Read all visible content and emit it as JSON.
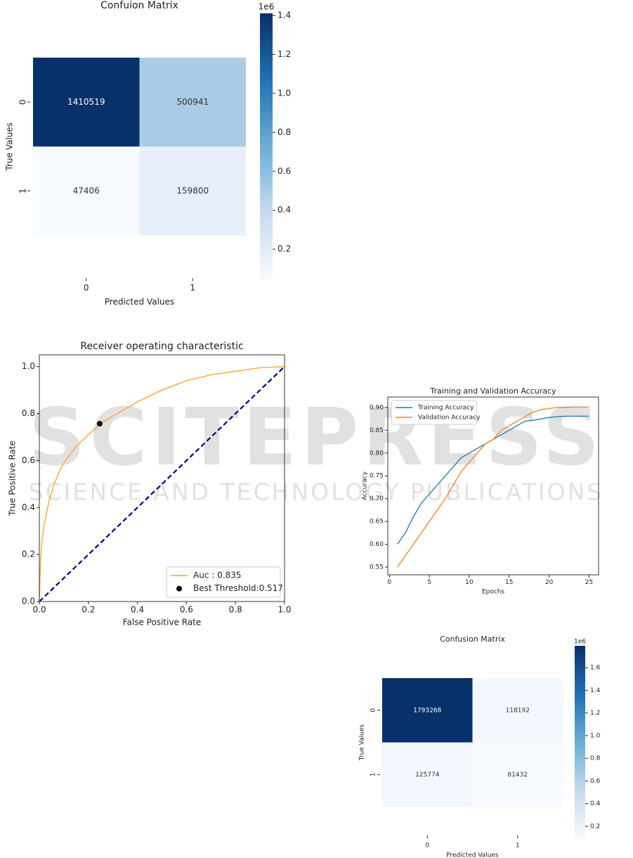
{
  "watermark": {
    "title": "SCITEPRESS",
    "subtitle": "SCIENCE AND TECHNOLOGY PUBLICATIONS"
  },
  "chart_data": [
    {
      "type": "heatmap",
      "title": "Confuion Matrix",
      "x_label": "Predicted Values",
      "y_label": "True Values",
      "x_categories": [
        "0",
        "1"
      ],
      "y_categories": [
        "0",
        "1"
      ],
      "values": [
        [
          1410519,
          500941
        ],
        [
          47406,
          159800
        ]
      ],
      "colormap": [
        "#f7fbff",
        "#c6dbef",
        "#6baed6",
        "#2171b5",
        "#08306b"
      ],
      "clim": [
        47406,
        1410519
      ],
      "colorbar_scale": "1e6",
      "colorbar_ticks": [
        {
          "value": 200000,
          "label": "0.2"
        },
        {
          "value": 400000,
          "label": "0.4"
        },
        {
          "value": 600000,
          "label": "0.6"
        },
        {
          "value": 800000,
          "label": "0.8"
        },
        {
          "value": 1000000,
          "label": "1.0"
        },
        {
          "value": 1200000,
          "label": "1.2"
        },
        {
          "value": 1400000,
          "label": "1.4"
        }
      ]
    },
    {
      "type": "line",
      "title": "Receiver operating characteristic",
      "x_label": "False Positive Rate",
      "y_label": "True Positive Rate",
      "xlim": [
        0,
        1
      ],
      "ylim": [
        0,
        1.05
      ],
      "xticks": [
        {
          "value": 0,
          "label": "0.0"
        },
        0.2,
        0.4,
        0.6,
        0.8,
        {
          "value": 1,
          "label": "1.0"
        }
      ],
      "yticks": [
        {
          "value": 0,
          "label": "0.0"
        },
        0.2,
        0.4,
        0.6,
        0.8,
        {
          "value": 1,
          "label": "1.0"
        }
      ],
      "legend": "lower right",
      "grid": false,
      "series": [
        {
          "name": "Auc : 0.835",
          "color": "#ff9f1c",
          "style": "solid",
          "x": [
            0,
            0.005,
            0.01,
            0.02,
            0.04,
            0.06,
            0.08,
            0.1,
            0.15,
            0.2,
            0.25,
            0.3,
            0.4,
            0.5,
            0.6,
            0.7,
            0.8,
            0.9,
            1.0
          ],
          "values": [
            0,
            0.18,
            0.25,
            0.33,
            0.43,
            0.5,
            0.55,
            0.59,
            0.66,
            0.71,
            0.757,
            0.79,
            0.85,
            0.9,
            0.94,
            0.965,
            0.98,
            0.995,
            1.0
          ]
        },
        {
          "color": "#000080",
          "style": "dashed",
          "x": [
            0,
            1
          ],
          "values": [
            0,
            1
          ]
        },
        {
          "name": "Best Threshold:0.517",
          "type": "scatter",
          "color": "#000000",
          "x": [
            0.246
          ],
          "values": [
            0.757
          ]
        }
      ]
    },
    {
      "type": "line",
      "title": "Training and Validation Accuracy",
      "x_label": "Epochs",
      "y_label": "Accuracy",
      "xlim": [
        -0.2,
        26.2
      ],
      "ylim": [
        0.533,
        0.923
      ],
      "xticks": [
        0,
        5,
        10,
        15,
        20,
        25
      ],
      "yticks": [
        0.55,
        {
          "value": 0.6,
          "label": "0.60"
        },
        0.65,
        {
          "value": 0.7,
          "label": "0.70"
        },
        0.75,
        {
          "value": 0.8,
          "label": "0.80"
        },
        0.85,
        {
          "value": 0.9,
          "label": "0.90"
        }
      ],
      "legend": "upper left",
      "grid": false,
      "x": [
        1,
        2,
        3,
        4,
        5,
        6,
        7,
        8,
        9,
        10,
        11,
        12,
        13,
        14,
        15,
        16,
        17,
        18,
        19,
        20,
        21,
        22,
        23,
        24,
        25
      ],
      "series": [
        {
          "name": "Training Accuracy",
          "color": "#1f77b4",
          "style": "solid",
          "values": [
            0.6,
            0.625,
            0.66,
            0.69,
            0.71,
            0.73,
            0.75,
            0.77,
            0.79,
            0.8,
            0.81,
            0.82,
            0.83,
            0.84,
            0.85,
            0.86,
            0.87,
            0.872,
            0.875,
            0.878,
            0.88,
            0.881,
            0.881,
            0.881,
            0.881
          ]
        },
        {
          "name": "Validation Accuracy",
          "color": "#ff7f0e",
          "style": "solid",
          "values": [
            0.55,
            0.575,
            0.6,
            0.625,
            0.65,
            0.675,
            0.7,
            0.73,
            0.76,
            0.78,
            0.8,
            0.82,
            0.83,
            0.85,
            0.86,
            0.87,
            0.88,
            0.89,
            0.895,
            0.898,
            0.9,
            0.9,
            0.901,
            0.901,
            0.901
          ]
        }
      ]
    },
    {
      "type": "heatmap",
      "title": "Confusion Matrix",
      "x_label": "Predicted Values",
      "y_label": "True Values",
      "x_categories": [
        "0",
        "1"
      ],
      "y_categories": [
        "0",
        "1"
      ],
      "values": [
        [
          1793268,
          118192
        ],
        [
          125774,
          81432
        ]
      ],
      "colormap": [
        "#f7fbff",
        "#c6dbef",
        "#6baed6",
        "#2171b5",
        "#08306b"
      ],
      "clim": [
        81432,
        1793268
      ],
      "colorbar_scale": "1e6",
      "colorbar_ticks": [
        {
          "value": 200000,
          "label": "0.2"
        },
        {
          "value": 400000,
          "label": "0.4"
        },
        {
          "value": 600000,
          "label": "0.6"
        },
        {
          "value": 800000,
          "label": "0.8"
        },
        {
          "value": 1000000,
          "label": "1.0"
        },
        {
          "value": 1200000,
          "label": "1.2"
        },
        {
          "value": 1400000,
          "label": "1.4"
        },
        {
          "value": 1600000,
          "label": "1.6"
        }
      ]
    }
  ]
}
